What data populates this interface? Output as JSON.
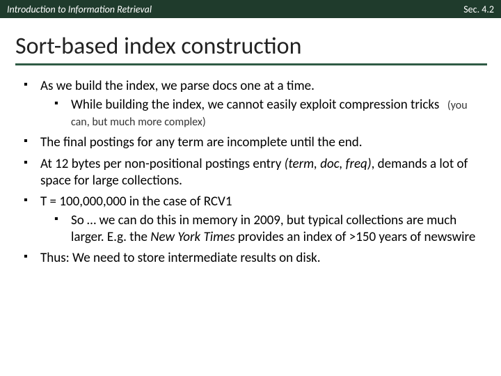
{
  "header": {
    "left": "Introduction to Information Retrieval",
    "right": "Sec. 4.2"
  },
  "title": "Sort-based index construction",
  "bullets": [
    {
      "text": "As we build the index, we parse docs one at a time.",
      "sub": [
        {
          "text": "While building the index, we cannot easily exploit compression tricks",
          "note": "(you can, but much more complex)"
        }
      ]
    },
    {
      "text": "The final postings for any term are incomplete until the end."
    },
    {
      "prefix": "At 12 bytes per non-positional postings entry ",
      "ital": "(term, doc, freq)",
      "suffix": ", demands a lot of space for large collections."
    },
    {
      "text": "T = 100,000,000 in the case of RCV1",
      "sub": [
        {
          "prefix": "So … we can do this in memory in 2009, but typical collections are much larger.  E.g. the ",
          "ital": "New York Times",
          "suffix": " provides an index of >150 years of newswire"
        }
      ]
    },
    {
      "text": "Thus: We need to store intermediate results on disk."
    }
  ]
}
